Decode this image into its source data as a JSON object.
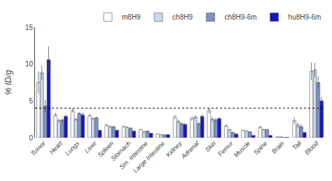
{
  "chart_data": {
    "type": "bar",
    "ylabel": "% ID/g",
    "categories": [
      "Tumor",
      "Heart",
      "Lungs",
      "Liver",
      "Spleen",
      "Stomach",
      "Sm. Intestine",
      "Large Intestine",
      "Kidney",
      "Adrenal",
      "Skin",
      "Femur",
      "Muscle",
      "Spine",
      "Brain",
      "Tail",
      "Blood"
    ],
    "series": [
      {
        "name": "m8H9",
        "color": "#ffffff",
        "values": [
          7.5,
          3.1,
          3.7,
          3.0,
          1.7,
          1.5,
          1.1,
          0.5,
          2.8,
          2.6,
          3.7,
          1.6,
          1.0,
          1.4,
          0.1,
          2.3,
          9.0
        ],
        "errors": [
          1.5,
          0.3,
          0.3,
          0.2,
          0.2,
          0.15,
          0.1,
          0.05,
          0.3,
          0.3,
          0.4,
          0.2,
          0.1,
          0.2,
          0.05,
          0.5,
          1.2
        ]
      },
      {
        "name": "ch8H9",
        "color": "#c8d8f0",
        "values": [
          8.8,
          2.3,
          2.5,
          2.6,
          1.5,
          1.4,
          0.8,
          0.4,
          2.2,
          2.8,
          2.5,
          1.1,
          0.9,
          1.1,
          0.1,
          1.7,
          9.2
        ],
        "errors": [
          1.0,
          0.25,
          0.2,
          0.15,
          0.15,
          0.12,
          0.1,
          0.04,
          0.25,
          0.25,
          0.3,
          0.1,
          0.1,
          0.1,
          0.04,
          0.3,
          1.0
        ]
      },
      {
        "name": "ch8H9-6m",
        "color": "#8090c8",
        "values": [
          4.3,
          2.4,
          3.3,
          2.7,
          1.5,
          1.3,
          0.9,
          0.4,
          1.9,
          1.9,
          2.4,
          0.7,
          0.8,
          1.1,
          0.05,
          1.5,
          7.5
        ],
        "errors": [
          0.8,
          0.2,
          0.2,
          0.15,
          0.1,
          0.1,
          0.1,
          0.04,
          0.2,
          0.2,
          0.25,
          0.1,
          0.1,
          0.1,
          0.04,
          0.3,
          0.8
        ]
      },
      {
        "name": "hu8H9-6m",
        "color": "#1515cc",
        "values": [
          10.6,
          2.9,
          3.1,
          1.0,
          1.0,
          0.9,
          0.6,
          0.4,
          1.8,
          2.9,
          2.6,
          0.5,
          0.3,
          0.3,
          0.05,
          0.7,
          5.0
        ],
        "errors": [
          1.8,
          0.25,
          0.3,
          0.1,
          0.1,
          0.1,
          0.06,
          0.04,
          0.2,
          0.3,
          0.25,
          0.08,
          0.05,
          0.05,
          0.04,
          0.1,
          0.5
        ]
      }
    ],
    "reference_line": 4.0,
    "ylim": [
      0,
      15
    ],
    "yticks": [
      0,
      5,
      10,
      15
    ],
    "grid": false,
    "legend": "top"
  }
}
